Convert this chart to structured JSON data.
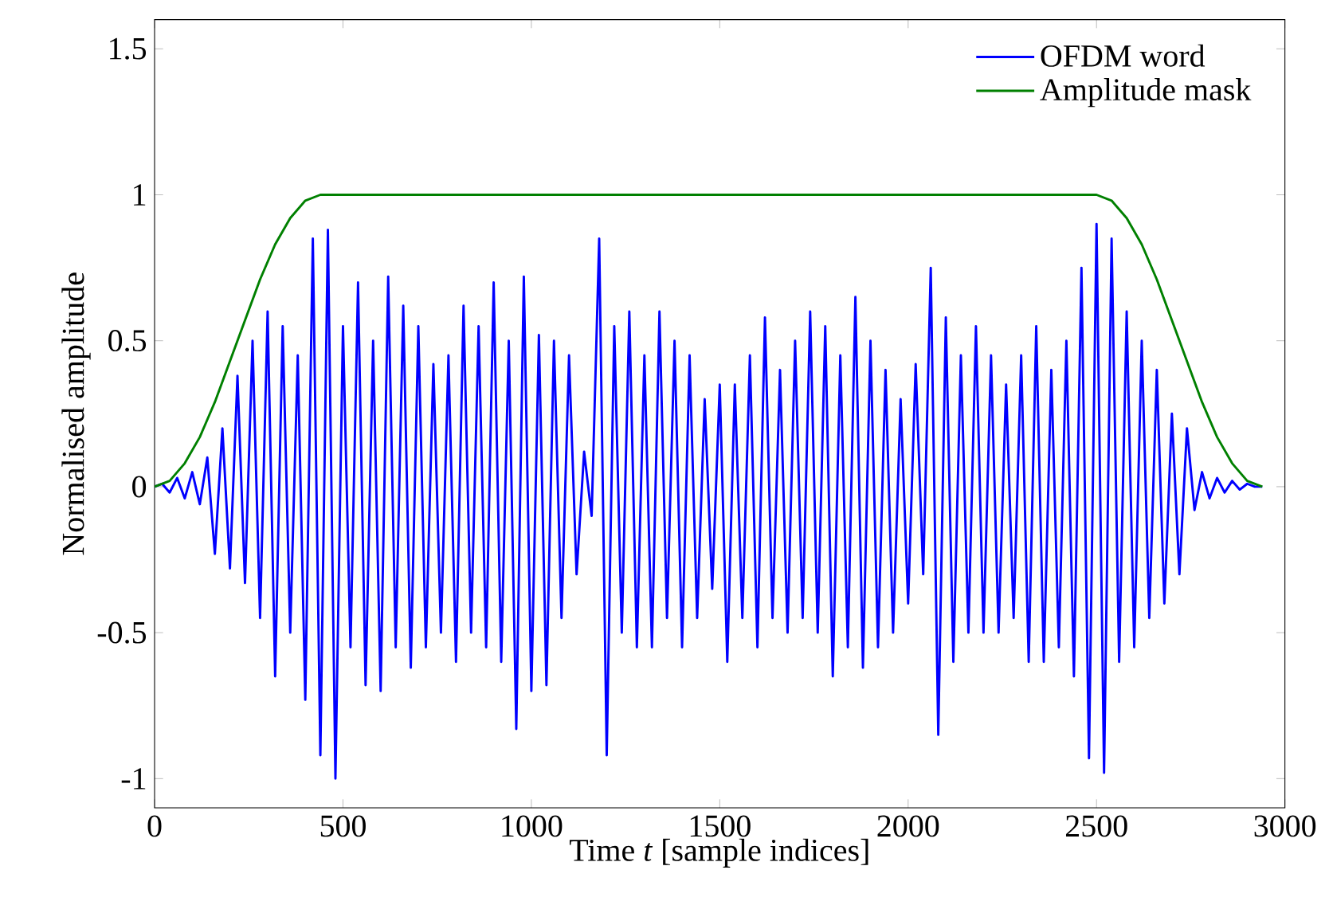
{
  "chart_data": {
    "type": "line",
    "xlabel": "Time *t* [sample indices]",
    "ylabel": "Normalised amplitude",
    "xlim": [
      0,
      3000
    ],
    "ylim": [
      -1.1,
      1.6
    ],
    "xticks": [
      0,
      500,
      1000,
      1500,
      2000,
      2500,
      3000
    ],
    "yticks": [
      -1,
      -0.5,
      0,
      0.5,
      1,
      1.5
    ],
    "grid": false,
    "legend": "top right",
    "marker": "none",
    "line_style": "solid",
    "series": [
      {
        "name": "OFDM word",
        "color": "#0000ff",
        "x": [
          0,
          20,
          40,
          60,
          80,
          100,
          120,
          140,
          160,
          180,
          200,
          220,
          240,
          260,
          280,
          300,
          320,
          340,
          360,
          380,
          400,
          420,
          440,
          460,
          480,
          500,
          520,
          540,
          560,
          580,
          600,
          620,
          640,
          660,
          680,
          700,
          720,
          740,
          760,
          780,
          800,
          820,
          840,
          860,
          880,
          900,
          920,
          940,
          960,
          980,
          1000,
          1020,
          1040,
          1060,
          1080,
          1100,
          1120,
          1140,
          1160,
          1180,
          1200,
          1220,
          1240,
          1260,
          1280,
          1300,
          1320,
          1340,
          1360,
          1380,
          1400,
          1420,
          1440,
          1460,
          1480,
          1500,
          1520,
          1540,
          1560,
          1580,
          1600,
          1620,
          1640,
          1660,
          1680,
          1700,
          1720,
          1740,
          1760,
          1780,
          1800,
          1820,
          1840,
          1860,
          1880,
          1900,
          1920,
          1940,
          1960,
          1980,
          2000,
          2020,
          2040,
          2060,
          2080,
          2100,
          2120,
          2140,
          2160,
          2180,
          2200,
          2220,
          2240,
          2260,
          2280,
          2300,
          2320,
          2340,
          2360,
          2380,
          2400,
          2420,
          2440,
          2460,
          2480,
          2500,
          2520,
          2540,
          2560,
          2580,
          2600,
          2620,
          2640,
          2660,
          2680,
          2700,
          2720,
          2740,
          2760,
          2780,
          2800,
          2820,
          2840,
          2860,
          2880,
          2900,
          2920,
          2940
        ],
        "values": [
          0,
          0.01,
          -0.02,
          0.03,
          -0.04,
          0.05,
          -0.06,
          0.1,
          -0.23,
          0.2,
          -0.28,
          0.38,
          -0.33,
          0.5,
          -0.45,
          0.6,
          -0.65,
          0.55,
          -0.5,
          0.45,
          -0.73,
          0.85,
          -0.92,
          0.88,
          -1.0,
          0.55,
          -0.55,
          0.7,
          -0.68,
          0.5,
          -0.7,
          0.72,
          -0.55,
          0.62,
          -0.62,
          0.55,
          -0.55,
          0.42,
          -0.5,
          0.45,
          -0.6,
          0.62,
          -0.5,
          0.55,
          -0.55,
          0.7,
          -0.6,
          0.5,
          -0.83,
          0.72,
          -0.7,
          0.52,
          -0.68,
          0.5,
          -0.45,
          0.45,
          -0.3,
          0.12,
          -0.1,
          0.85,
          -0.92,
          0.55,
          -0.5,
          0.6,
          -0.55,
          0.45,
          -0.55,
          0.6,
          -0.45,
          0.5,
          -0.55,
          0.45,
          -0.45,
          0.3,
          -0.35,
          0.35,
          -0.6,
          0.35,
          -0.45,
          0.45,
          -0.55,
          0.58,
          -0.45,
          0.4,
          -0.5,
          0.5,
          -0.45,
          0.6,
          -0.5,
          0.55,
          -0.65,
          0.45,
          -0.55,
          0.65,
          -0.62,
          0.5,
          -0.55,
          0.4,
          -0.5,
          0.3,
          -0.4,
          0.42,
          -0.3,
          0.75,
          -0.85,
          0.58,
          -0.6,
          0.45,
          -0.5,
          0.55,
          -0.5,
          0.45,
          -0.5,
          0.35,
          -0.45,
          0.45,
          -0.6,
          0.55,
          -0.6,
          0.4,
          -0.55,
          0.5,
          -0.65,
          0.75,
          -0.93,
          0.9,
          -0.98,
          0.85,
          -0.6,
          0.6,
          -0.55,
          0.5,
          -0.45,
          0.4,
          -0.4,
          0.25,
          -0.3,
          0.2,
          -0.08,
          0.05,
          -0.04,
          0.03,
          -0.02,
          0.02,
          -0.01,
          0.01,
          0,
          0
        ]
      },
      {
        "name": "Amplitude mask",
        "color": "#008000",
        "x": [
          0,
          40,
          80,
          120,
          160,
          200,
          240,
          280,
          320,
          360,
          400,
          440,
          2500,
          2540,
          2580,
          2620,
          2660,
          2700,
          2740,
          2780,
          2820,
          2860,
          2900,
          2940
        ],
        "values": [
          0,
          0.02,
          0.08,
          0.17,
          0.29,
          0.43,
          0.57,
          0.71,
          0.83,
          0.92,
          0.98,
          1,
          1,
          0.98,
          0.92,
          0.83,
          0.71,
          0.57,
          0.43,
          0.29,
          0.17,
          0.08,
          0.02,
          0
        ]
      }
    ]
  }
}
